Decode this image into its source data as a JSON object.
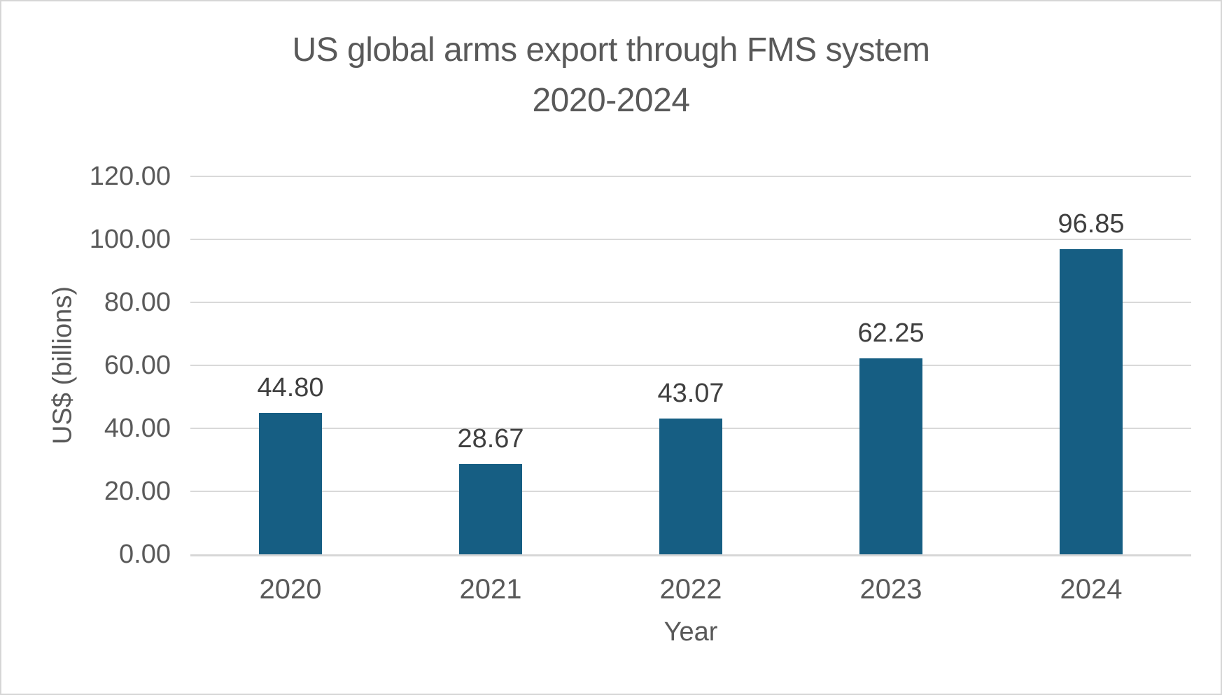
{
  "chart_data": {
    "type": "bar",
    "title": "US global arms export through FMS system",
    "subtitle": "2020-2024",
    "categories": [
      "2020",
      "2021",
      "2022",
      "2023",
      "2024"
    ],
    "values": [
      44.8,
      28.67,
      43.07,
      62.25,
      96.85
    ],
    "data_labels": [
      "44.80",
      "28.67",
      "43.07",
      "62.25",
      "96.85"
    ],
    "xlabel": "Year",
    "ylabel": "US$ (billions)",
    "y_ticks": [
      "0.00",
      "20.00",
      "40.00",
      "60.00",
      "80.00",
      "100.00",
      "120.00"
    ],
    "ylim": [
      0,
      120
    ],
    "y_tick_step": 20,
    "grid": "horizontal",
    "legend": "none",
    "bar_color": "#165E83",
    "gridline_color": "#D9D9D9",
    "axis_line_color": "#D7D7D7",
    "title_color": "#595959",
    "tick_color": "#595959",
    "data_label_color": "#3F3F3F"
  }
}
